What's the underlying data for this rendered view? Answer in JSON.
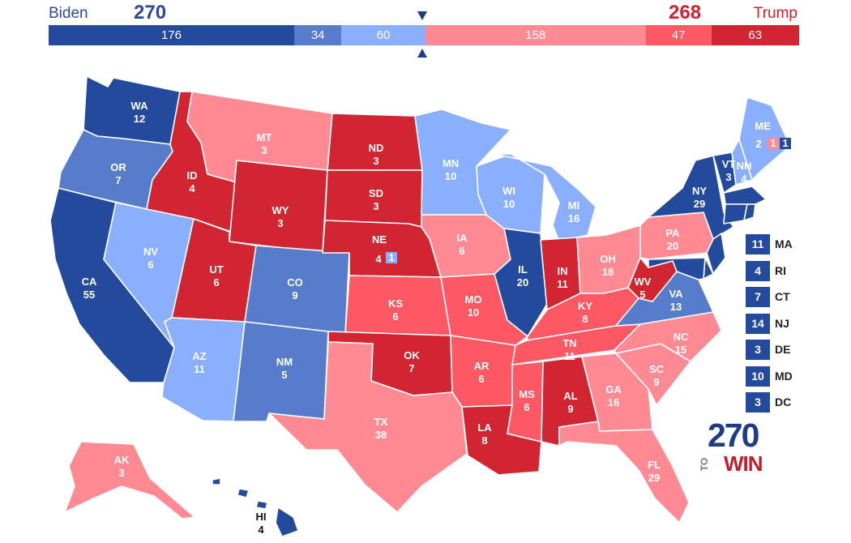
{
  "header": {
    "biden": {
      "name": "Biden",
      "total": "270",
      "color": "#244a9d"
    },
    "trump": {
      "name": "Trump",
      "total": "268",
      "color": "#d0202e"
    },
    "bar_segments": [
      {
        "label": "176",
        "value": 176,
        "color": "#244a9d"
      },
      {
        "label": "34",
        "value": 34,
        "color": "#577ccc"
      },
      {
        "label": "60",
        "value": 60,
        "color": "#8aafff"
      },
      {
        "label": "158",
        "value": 158,
        "color": "#ff8a94"
      },
      {
        "label": "47",
        "value": 47,
        "color": "#ff5865"
      },
      {
        "label": "63",
        "value": 63,
        "color": "#d22532"
      }
    ]
  },
  "legend_colors": {
    "safe_dem": "#244a9d",
    "likely_dem": "#577ccc",
    "lean_dem": "#8aafff",
    "lean_rep": "#ff8a94",
    "likely_rep": "#ff5865",
    "safe_rep": "#d22532"
  },
  "states": [
    {
      "abbr": "WA",
      "ev": "12",
      "rating": "safe_dem"
    },
    {
      "abbr": "OR",
      "ev": "7",
      "rating": "likely_dem"
    },
    {
      "abbr": "CA",
      "ev": "55",
      "rating": "safe_dem"
    },
    {
      "abbr": "NV",
      "ev": "6",
      "rating": "lean_dem"
    },
    {
      "abbr": "ID",
      "ev": "4",
      "rating": "safe_rep"
    },
    {
      "abbr": "MT",
      "ev": "3",
      "rating": "lean_rep"
    },
    {
      "abbr": "WY",
      "ev": "3",
      "rating": "safe_rep"
    },
    {
      "abbr": "UT",
      "ev": "6",
      "rating": "safe_rep"
    },
    {
      "abbr": "AZ",
      "ev": "11",
      "rating": "lean_dem"
    },
    {
      "abbr": "CO",
      "ev": "9",
      "rating": "likely_dem"
    },
    {
      "abbr": "NM",
      "ev": "5",
      "rating": "likely_dem"
    },
    {
      "abbr": "ND",
      "ev": "3",
      "rating": "safe_rep"
    },
    {
      "abbr": "SD",
      "ev": "3",
      "rating": "safe_rep"
    },
    {
      "abbr": "NE",
      "ev": "4",
      "rating": "safe_rep",
      "district_ev": "1",
      "district_rating": "lean_dem"
    },
    {
      "abbr": "KS",
      "ev": "6",
      "rating": "likely_rep"
    },
    {
      "abbr": "OK",
      "ev": "7",
      "rating": "safe_rep"
    },
    {
      "abbr": "TX",
      "ev": "38",
      "rating": "lean_rep"
    },
    {
      "abbr": "MN",
      "ev": "10",
      "rating": "lean_dem"
    },
    {
      "abbr": "IA",
      "ev": "6",
      "rating": "lean_rep"
    },
    {
      "abbr": "MO",
      "ev": "10",
      "rating": "likely_rep"
    },
    {
      "abbr": "AR",
      "ev": "6",
      "rating": "likely_rep"
    },
    {
      "abbr": "LA",
      "ev": "8",
      "rating": "safe_rep"
    },
    {
      "abbr": "WI",
      "ev": "10",
      "rating": "lean_dem"
    },
    {
      "abbr": "IL",
      "ev": "20",
      "rating": "safe_dem"
    },
    {
      "abbr": "MI",
      "ev": "16",
      "rating": "lean_dem"
    },
    {
      "abbr": "IN",
      "ev": "11",
      "rating": "safe_rep"
    },
    {
      "abbr": "OH",
      "ev": "18",
      "rating": "lean_rep"
    },
    {
      "abbr": "KY",
      "ev": "8",
      "rating": "likely_rep"
    },
    {
      "abbr": "TN",
      "ev": "11",
      "rating": "likely_rep"
    },
    {
      "abbr": "MS",
      "ev": "6",
      "rating": "likely_rep"
    },
    {
      "abbr": "AL",
      "ev": "9",
      "rating": "safe_rep"
    },
    {
      "abbr": "GA",
      "ev": "16",
      "rating": "lean_rep"
    },
    {
      "abbr": "FL",
      "ev": "29",
      "rating": "lean_rep"
    },
    {
      "abbr": "SC",
      "ev": "9",
      "rating": "lean_rep"
    },
    {
      "abbr": "NC",
      "ev": "15",
      "rating": "lean_rep"
    },
    {
      "abbr": "VA",
      "ev": "13",
      "rating": "likely_dem"
    },
    {
      "abbr": "WV",
      "ev": "5",
      "rating": "safe_rep"
    },
    {
      "abbr": "PA",
      "ev": "20",
      "rating": "lean_rep"
    },
    {
      "abbr": "NY",
      "ev": "29",
      "rating": "safe_dem"
    },
    {
      "abbr": "VT",
      "ev": "3",
      "rating": "safe_dem"
    },
    {
      "abbr": "NH",
      "ev": "4",
      "rating": "lean_dem"
    },
    {
      "abbr": "ME",
      "ev": "2",
      "rating": "lean_dem",
      "district_evs": [
        "1",
        "1"
      ],
      "district_ratings": [
        "lean_rep",
        "safe_dem"
      ]
    },
    {
      "abbr": "AK",
      "ev": "3",
      "rating": "lean_rep"
    },
    {
      "abbr": "HI",
      "ev": "4",
      "rating": "safe_dem"
    }
  ],
  "small_states": [
    {
      "abbr": "MA",
      "ev": "11",
      "rating": "safe_dem"
    },
    {
      "abbr": "RI",
      "ev": "4",
      "rating": "safe_dem"
    },
    {
      "abbr": "CT",
      "ev": "7",
      "rating": "safe_dem"
    },
    {
      "abbr": "NJ",
      "ev": "14",
      "rating": "safe_dem"
    },
    {
      "abbr": "DE",
      "ev": "3",
      "rating": "safe_dem"
    },
    {
      "abbr": "MD",
      "ev": "10",
      "rating": "safe_dem"
    },
    {
      "abbr": "DC",
      "ev": "3",
      "rating": "safe_dem"
    }
  ],
  "logo": {
    "number": "270",
    "to": "TO",
    "win": "WIN"
  }
}
